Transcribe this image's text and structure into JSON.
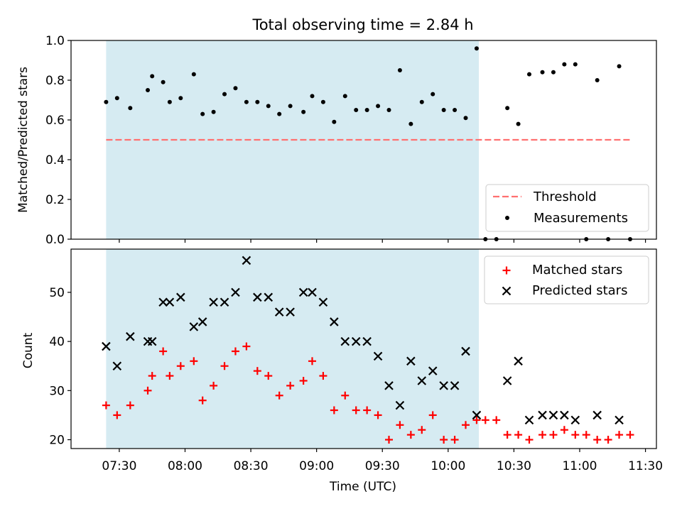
{
  "title": "Total observing time = 2.84 h",
  "chart_data": [
    {
      "type": "scatter",
      "panel": "top",
      "ylabel": "Matched/Predicted stars",
      "ylim": [
        0,
        1.0
      ],
      "yticks": [
        0.0,
        0.2,
        0.4,
        0.6,
        0.8,
        1.0
      ],
      "ytick_labels": [
        "0.0",
        "0.2",
        "0.4",
        "0.6",
        "0.8",
        "1.0"
      ],
      "shaded_span": [
        "07:24",
        "10:14"
      ],
      "threshold": {
        "name": "Threshold",
        "value": 0.5,
        "x_start": "07:24",
        "x_end": "11:24",
        "color": "#ff7070"
      },
      "series": [
        {
          "name": "Measurements",
          "marker": "dot",
          "color": "#000000",
          "points": [
            [
              "07:24",
              0.69
            ],
            [
              "07:29",
              0.71
            ],
            [
              "07:35",
              0.66
            ],
            [
              "07:43",
              0.75
            ],
            [
              "07:45",
              0.82
            ],
            [
              "07:50",
              0.79
            ],
            [
              "07:53",
              0.69
            ],
            [
              "07:58",
              0.71
            ],
            [
              "08:04",
              0.83
            ],
            [
              "08:08",
              0.63
            ],
            [
              "08:13",
              0.64
            ],
            [
              "08:18",
              0.73
            ],
            [
              "08:23",
              0.76
            ],
            [
              "08:28",
              0.69
            ],
            [
              "08:33",
              0.69
            ],
            [
              "08:38",
              0.67
            ],
            [
              "08:43",
              0.63
            ],
            [
              "08:48",
              0.67
            ],
            [
              "08:54",
              0.64
            ],
            [
              "08:58",
              0.72
            ],
            [
              "09:03",
              0.69
            ],
            [
              "09:08",
              0.59
            ],
            [
              "09:13",
              0.72
            ],
            [
              "09:18",
              0.65
            ],
            [
              "09:23",
              0.65
            ],
            [
              "09:28",
              0.67
            ],
            [
              "09:33",
              0.65
            ],
            [
              "09:38",
              0.85
            ],
            [
              "09:43",
              0.58
            ],
            [
              "09:48",
              0.69
            ],
            [
              "09:53",
              0.73
            ],
            [
              "09:58",
              0.65
            ],
            [
              "10:03",
              0.65
            ],
            [
              "10:08",
              0.61
            ],
            [
              "10:13",
              0.96
            ],
            [
              "10:17",
              0.0
            ],
            [
              "10:22",
              0.0
            ],
            [
              "10:27",
              0.66
            ],
            [
              "10:32",
              0.58
            ],
            [
              "10:37",
              0.83
            ],
            [
              "10:43",
              0.84
            ],
            [
              "10:48",
              0.84
            ],
            [
              "10:53",
              0.88
            ],
            [
              "10:58",
              0.88
            ],
            [
              "11:03",
              0.0
            ],
            [
              "11:08",
              0.8
            ],
            [
              "11:13",
              0.0
            ],
            [
              "11:18",
              0.87
            ],
            [
              "11:23",
              0.0
            ]
          ]
        }
      ],
      "legend": {
        "placement": "lower-right",
        "entries": [
          "Threshold",
          "Measurements"
        ]
      },
      "xlim": [
        "07:08",
        "11:35"
      ],
      "xticks": [
        "07:30",
        "08:00",
        "08:30",
        "09:00",
        "09:30",
        "10:00",
        "10:30",
        "11:00",
        "11:30"
      ]
    },
    {
      "type": "scatter",
      "panel": "bottom",
      "xlabel": "Time (UTC)",
      "ylabel": "Count",
      "ylim": [
        18.2,
        58.8
      ],
      "yticks": [
        20,
        30,
        40,
        50
      ],
      "ytick_labels": [
        "20",
        "30",
        "40",
        "50"
      ],
      "shaded_span": [
        "07:24",
        "10:14"
      ],
      "xlim": [
        "07:08",
        "11:35"
      ],
      "xticks": [
        "07:30",
        "08:00",
        "08:30",
        "09:00",
        "09:30",
        "10:00",
        "10:30",
        "11:00",
        "11:30"
      ],
      "xtick_labels": [
        "07:30",
        "08:00",
        "08:30",
        "09:00",
        "09:30",
        "10:00",
        "10:30",
        "11:00",
        "11:30"
      ],
      "series": [
        {
          "name": "Matched stars",
          "marker": "plus",
          "color": "#ff0000",
          "points": [
            [
              "07:24",
              27
            ],
            [
              "07:29",
              25
            ],
            [
              "07:35",
              27
            ],
            [
              "07:43",
              30
            ],
            [
              "07:45",
              33
            ],
            [
              "07:50",
              38
            ],
            [
              "07:53",
              33
            ],
            [
              "07:58",
              35
            ],
            [
              "08:04",
              36
            ],
            [
              "08:08",
              28
            ],
            [
              "08:13",
              31
            ],
            [
              "08:18",
              35
            ],
            [
              "08:23",
              38
            ],
            [
              "08:28",
              39
            ],
            [
              "08:33",
              34
            ],
            [
              "08:38",
              33
            ],
            [
              "08:43",
              29
            ],
            [
              "08:48",
              31
            ],
            [
              "08:54",
              32
            ],
            [
              "08:58",
              36
            ],
            [
              "09:03",
              33
            ],
            [
              "09:08",
              26
            ],
            [
              "09:13",
              29
            ],
            [
              "09:18",
              26
            ],
            [
              "09:23",
              26
            ],
            [
              "09:28",
              25
            ],
            [
              "09:33",
              20
            ],
            [
              "09:38",
              23
            ],
            [
              "09:43",
              21
            ],
            [
              "09:48",
              22
            ],
            [
              "09:53",
              25
            ],
            [
              "09:58",
              20
            ],
            [
              "10:03",
              20
            ],
            [
              "10:08",
              23
            ],
            [
              "10:13",
              24
            ],
            [
              "10:17",
              24
            ],
            [
              "10:22",
              24
            ],
            [
              "10:27",
              21
            ],
            [
              "10:32",
              21
            ],
            [
              "10:37",
              20
            ],
            [
              "10:43",
              21
            ],
            [
              "10:48",
              21
            ],
            [
              "10:53",
              22
            ],
            [
              "10:58",
              21
            ],
            [
              "11:03",
              21
            ],
            [
              "11:08",
              20
            ],
            [
              "11:13",
              20
            ],
            [
              "11:18",
              21
            ],
            [
              "11:23",
              21
            ]
          ]
        },
        {
          "name": "Predicted stars",
          "marker": "x",
          "color": "#000000",
          "points": [
            [
              "07:24",
              39
            ],
            [
              "07:29",
              35
            ],
            [
              "07:35",
              41
            ],
            [
              "07:43",
              40
            ],
            [
              "07:45",
              40
            ],
            [
              "07:50",
              48
            ],
            [
              "07:53",
              48
            ],
            [
              "07:58",
              49
            ],
            [
              "08:04",
              43
            ],
            [
              "08:08",
              44
            ],
            [
              "08:13",
              48
            ],
            [
              "08:18",
              48
            ],
            [
              "08:23",
              50
            ],
            [
              "08:28",
              56.5
            ],
            [
              "08:33",
              49
            ],
            [
              "08:38",
              49
            ],
            [
              "08:43",
              46
            ],
            [
              "08:48",
              46
            ],
            [
              "08:54",
              50
            ],
            [
              "08:58",
              50
            ],
            [
              "09:03",
              48
            ],
            [
              "09:08",
              44
            ],
            [
              "09:13",
              40
            ],
            [
              "09:18",
              40
            ],
            [
              "09:23",
              40
            ],
            [
              "09:28",
              37
            ],
            [
              "09:33",
              31
            ],
            [
              "09:38",
              27
            ],
            [
              "09:43",
              36
            ],
            [
              "09:48",
              32
            ],
            [
              "09:53",
              34
            ],
            [
              "09:58",
              31
            ],
            [
              "10:03",
              31
            ],
            [
              "10:08",
              38
            ],
            [
              "10:13",
              25
            ],
            [
              "10:27",
              32
            ],
            [
              "10:32",
              36
            ],
            [
              "10:37",
              24
            ],
            [
              "10:43",
              25
            ],
            [
              "10:48",
              25
            ],
            [
              "10:53",
              25
            ],
            [
              "10:58",
              24
            ],
            [
              "11:08",
              25
            ],
            [
              "11:18",
              24
            ]
          ]
        }
      ],
      "legend": {
        "placement": "top-right",
        "entries": [
          "Matched stars",
          "Predicted stars"
        ]
      }
    }
  ],
  "colors": {
    "shade": "#add8e6",
    "threshold": "#ff7070",
    "matched": "#ff0000",
    "predicted": "#000000",
    "measurement": "#000000"
  }
}
